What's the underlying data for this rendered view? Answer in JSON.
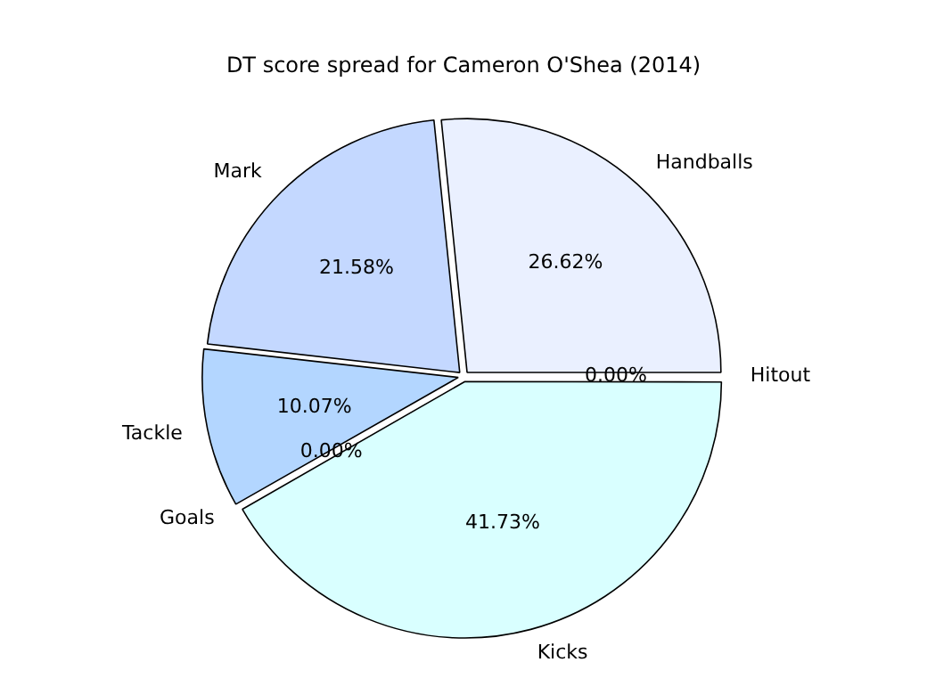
{
  "chart_data": {
    "type": "pie",
    "title": "DT score spread for Cameron O'Shea (2014)",
    "categories": [
      "Handballs",
      "Mark",
      "Tackle",
      "Goals",
      "Kicks",
      "Hitout"
    ],
    "values": [
      26.62,
      21.58,
      10.07,
      0,
      41.73,
      0
    ],
    "value_labels": [
      "26.62%",
      "21.58%",
      "10.07%",
      "0.00%",
      "41.73%",
      "0.00%"
    ],
    "colors": [
      "#eaf0ff",
      "#c4d8ff",
      "#b3d6ff",
      "#c8e8ff",
      "#d9ffff",
      "#e0f0ff"
    ],
    "legend": false
  }
}
